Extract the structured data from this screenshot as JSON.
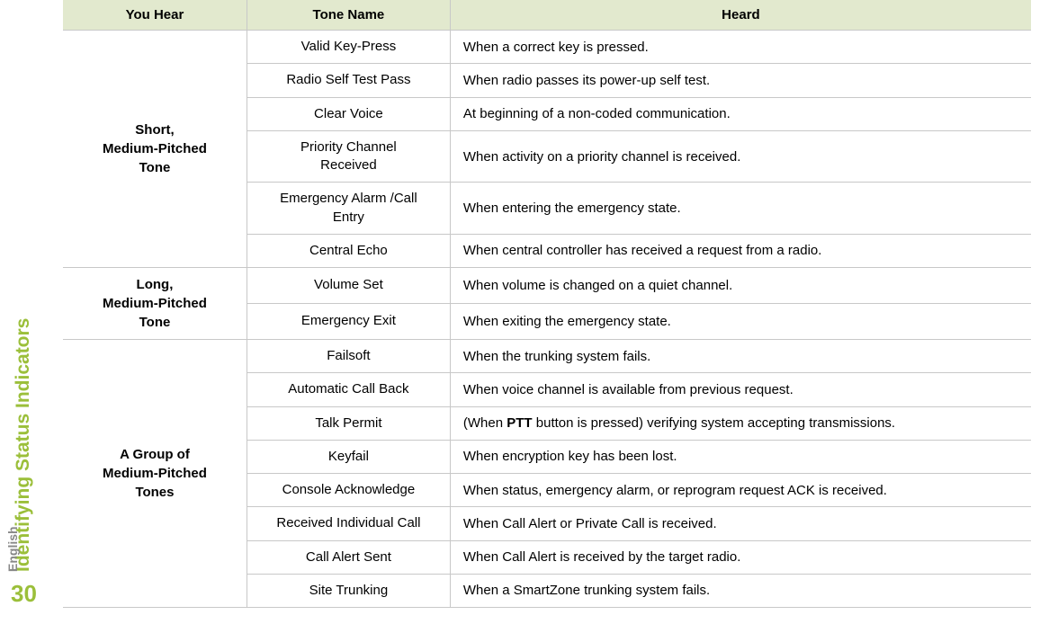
{
  "sidebar": {
    "title": "Identifying Status Indicators",
    "language": "English",
    "page": "30"
  },
  "table": {
    "headers": {
      "c1": "You Hear",
      "c2": "Tone Name",
      "c3": "Heard"
    },
    "groups": [
      {
        "label": "Short,\nMedium-Pitched\nTone",
        "rows": [
          {
            "tone": "Valid Key-Press",
            "heard": "When a correct key is pressed."
          },
          {
            "tone": "Radio Self Test Pass",
            "heard": "When radio passes its power-up self test."
          },
          {
            "tone": "Clear Voice",
            "heard": "At beginning of a non-coded communication."
          },
          {
            "tone": "Priority Channel\nReceived",
            "heard": "When activity on a priority channel is received."
          },
          {
            "tone": "Emergency Alarm /Call\nEntry",
            "heard": "When entering the emergency state."
          },
          {
            "tone": "Central Echo",
            "heard": "When central controller has received a request from a radio."
          }
        ]
      },
      {
        "label": "Long,\nMedium-Pitched\nTone",
        "rows": [
          {
            "tone": "Volume Set",
            "heard": "When volume is changed on a quiet channel."
          },
          {
            "tone": "Emergency Exit",
            "heard": "When exiting the emergency state."
          }
        ]
      },
      {
        "label": "A Group of\nMedium-Pitched\nTones",
        "rows": [
          {
            "tone": "Failsoft",
            "heard": "When the trunking system fails."
          },
          {
            "tone": "Automatic Call Back",
            "heard": "When voice channel is available from previous request."
          },
          {
            "tone": "Talk Permit",
            "heard_pre": "(When ",
            "heard_bold": "PTT",
            "heard_post": " button is pressed) verifying system accepting transmissions."
          },
          {
            "tone": "Keyfail",
            "heard": "When encryption key has been lost."
          },
          {
            "tone": "Console Acknowledge",
            "heard": "When status, emergency alarm, or reprogram request ACK is received."
          },
          {
            "tone": "Received Individual Call",
            "heard": "When Call Alert or Private Call is received."
          },
          {
            "tone": "Call Alert Sent",
            "heard": "When Call Alert is received by the target radio."
          },
          {
            "tone": "Site Trunking",
            "heard": "When a SmartZone trunking system fails."
          }
        ]
      }
    ]
  },
  "colors": {
    "header_bg": "#e2e9ce",
    "border": "#c8c8c8",
    "accent": "#9bbf3a",
    "muted": "#888888"
  }
}
